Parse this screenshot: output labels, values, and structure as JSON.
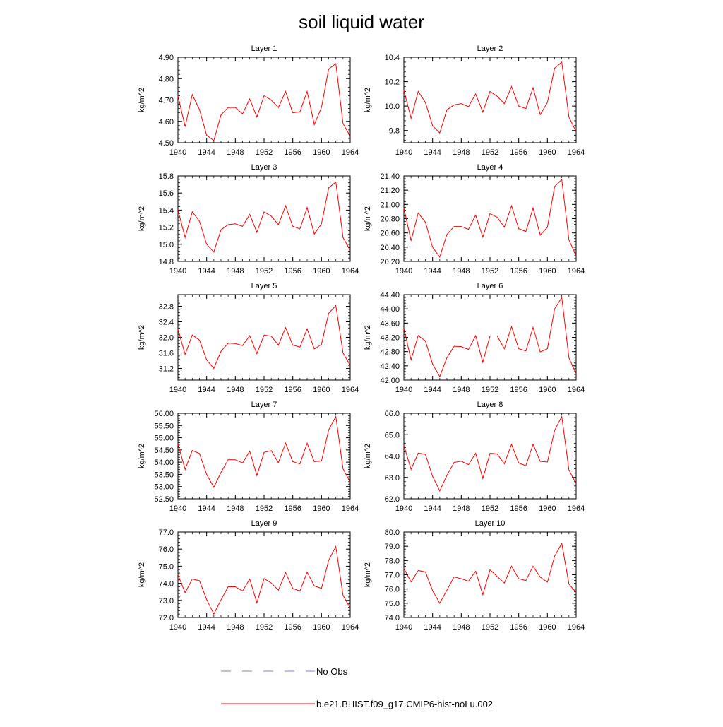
{
  "page_title": "soil liquid water",
  "legend": {
    "obs_label": "No Obs",
    "model_label": "b.e21.BHIST.f09_g17.CMIP6-hist-noLu.002",
    "obs_color": "#7f7fe0",
    "model_color": "#ff0000"
  },
  "chart_data": [
    {
      "type": "line",
      "title": "Layer 1",
      "ylabel": "kg/m^2",
      "xlabel": "",
      "xlim": [
        1940,
        1964
      ],
      "ylim": [
        4.5,
        4.9
      ],
      "xticks": [
        1940,
        1944,
        1948,
        1952,
        1956,
        1960,
        1964
      ],
      "xtick_labels": [
        "1940",
        "1944",
        "1948",
        "1952",
        "1956",
        "1960",
        "1964"
      ],
      "yticks": [
        4.5,
        4.6,
        4.7,
        4.8,
        4.9
      ],
      "ytick_labels": [
        "4.50",
        "4.60",
        "4.70",
        "4.80",
        "4.90"
      ],
      "grid": false,
      "x": [
        1940,
        1941,
        1942,
        1943,
        1944,
        1945,
        1946,
        1947,
        1948,
        1949,
        1950,
        1951,
        1952,
        1953,
        1954,
        1955,
        1956,
        1957,
        1958,
        1959,
        1960,
        1961,
        1962,
        1963,
        1964
      ],
      "series": [
        {
          "name": "b.e21.BHIST.f09_g17.CMIP6-hist-noLu.002",
          "color": "#ff0000",
          "values": [
            4.72,
            4.575,
            4.725,
            4.655,
            4.535,
            4.51,
            4.63,
            4.665,
            4.665,
            4.635,
            4.705,
            4.62,
            4.72,
            4.7,
            4.665,
            4.74,
            4.64,
            4.645,
            4.74,
            4.585,
            4.665,
            4.845,
            4.87,
            4.59,
            4.53
          ]
        }
      ]
    },
    {
      "type": "line",
      "title": "Layer 2",
      "ylabel": "kg/m^2",
      "xlabel": "",
      "xlim": [
        1940,
        1964
      ],
      "ylim": [
        9.7,
        10.4
      ],
      "xticks": [
        1940,
        1944,
        1948,
        1952,
        1956,
        1960,
        1964
      ],
      "xtick_labels": [
        "1940",
        "1944",
        "1948",
        "1952",
        "1956",
        "1960",
        "1964"
      ],
      "yticks": [
        9.8,
        10.0,
        10.2,
        10.4
      ],
      "ytick_labels": [
        "9.8",
        "10.0",
        "10.2",
        "10.4"
      ],
      "grid": false,
      "x": [
        1940,
        1941,
        1942,
        1943,
        1944,
        1945,
        1946,
        1947,
        1948,
        1949,
        1950,
        1951,
        1952,
        1953,
        1954,
        1955,
        1956,
        1957,
        1958,
        1959,
        1960,
        1961,
        1962,
        1963,
        1964
      ],
      "series": [
        {
          "name": "b.e21.BHIST.f09_g17.CMIP6-hist-noLu.002",
          "color": "#ff0000",
          "values": [
            10.13,
            9.9,
            10.12,
            10.03,
            9.84,
            9.78,
            9.97,
            10.01,
            10.02,
            9.995,
            10.1,
            9.95,
            10.12,
            10.08,
            10.02,
            10.16,
            10.0,
            9.98,
            10.15,
            9.93,
            10.03,
            10.31,
            10.36,
            9.91,
            9.79
          ]
        }
      ]
    },
    {
      "type": "line",
      "title": "Layer 3",
      "ylabel": "kg/m^2",
      "xlabel": "",
      "xlim": [
        1940,
        1964
      ],
      "ylim": [
        14.8,
        15.8
      ],
      "xticks": [
        1940,
        1944,
        1948,
        1952,
        1956,
        1960,
        1964
      ],
      "xtick_labels": [
        "1940",
        "1944",
        "1948",
        "1952",
        "1956",
        "1960",
        "1964"
      ],
      "yticks": [
        14.8,
        15.0,
        15.2,
        15.4,
        15.6,
        15.8
      ],
      "ytick_labels": [
        "14.8",
        "15.0",
        "15.2",
        "15.4",
        "15.6",
        "15.8"
      ],
      "grid": false,
      "x": [
        1940,
        1941,
        1942,
        1943,
        1944,
        1945,
        1946,
        1947,
        1948,
        1949,
        1950,
        1951,
        1952,
        1953,
        1954,
        1955,
        1956,
        1957,
        1958,
        1959,
        1960,
        1961,
        1962,
        1963,
        1964
      ],
      "series": [
        {
          "name": "b.e21.BHIST.f09_g17.CMIP6-hist-noLu.002",
          "color": "#ff0000",
          "values": [
            15.4,
            15.08,
            15.38,
            15.27,
            15.0,
            14.91,
            15.17,
            15.23,
            15.24,
            15.21,
            15.35,
            15.14,
            15.38,
            15.33,
            15.23,
            15.45,
            15.21,
            15.18,
            15.43,
            15.12,
            15.24,
            15.66,
            15.73,
            15.08,
            14.93
          ]
        }
      ]
    },
    {
      "type": "line",
      "title": "Layer 4",
      "ylabel": "kg/m^2",
      "xlabel": "",
      "xlim": [
        1940,
        1964
      ],
      "ylim": [
        20.2,
        21.4
      ],
      "xticks": [
        1940,
        1944,
        1948,
        1952,
        1956,
        1960,
        1964
      ],
      "xtick_labels": [
        "1940",
        "1944",
        "1948",
        "1952",
        "1956",
        "1960",
        "1964"
      ],
      "yticks": [
        20.2,
        20.4,
        20.6,
        20.8,
        21.0,
        21.2,
        21.4
      ],
      "ytick_labels": [
        "20.20",
        "20.40",
        "20.60",
        "20.80",
        "21.00",
        "21.20",
        "21.40"
      ],
      "grid": false,
      "x": [
        1940,
        1941,
        1942,
        1943,
        1944,
        1945,
        1946,
        1947,
        1948,
        1949,
        1950,
        1951,
        1952,
        1953,
        1954,
        1955,
        1956,
        1957,
        1958,
        1959,
        1960,
        1961,
        1962,
        1963,
        1964
      ],
      "series": [
        {
          "name": "b.e21.BHIST.f09_g17.CMIP6-hist-noLu.002",
          "color": "#ff0000",
          "values": [
            20.95,
            20.49,
            20.88,
            20.75,
            20.4,
            20.26,
            20.58,
            20.69,
            20.69,
            20.65,
            20.85,
            20.54,
            20.87,
            20.82,
            20.68,
            20.98,
            20.66,
            20.62,
            20.95,
            20.57,
            20.68,
            21.25,
            21.35,
            20.5,
            20.28
          ]
        }
      ]
    },
    {
      "type": "line",
      "title": "Layer 5",
      "ylabel": "kg/m^2",
      "xlabel": "",
      "xlim": [
        1940,
        1964
      ],
      "ylim": [
        30.9,
        33.1
      ],
      "xticks": [
        1940,
        1944,
        1948,
        1952,
        1956,
        1960,
        1964
      ],
      "xtick_labels": [
        "1940",
        "1944",
        "1948",
        "1952",
        "1956",
        "1960",
        "1964"
      ],
      "yticks": [
        31.2,
        31.6,
        32.0,
        32.4,
        32.8
      ],
      "ytick_labels": [
        "31.2",
        "31.6",
        "32.0",
        "32.4",
        "32.8"
      ],
      "grid": false,
      "x": [
        1940,
        1941,
        1942,
        1943,
        1944,
        1945,
        1946,
        1947,
        1948,
        1949,
        1950,
        1951,
        1952,
        1953,
        1954,
        1955,
        1956,
        1957,
        1958,
        1959,
        1960,
        1961,
        1962,
        1963,
        1964
      ],
      "series": [
        {
          "name": "b.e21.BHIST.f09_g17.CMIP6-hist-noLu.002",
          "color": "#ff0000",
          "values": [
            32.2,
            31.56,
            32.06,
            31.93,
            31.42,
            31.2,
            31.64,
            31.85,
            31.84,
            31.79,
            32.04,
            31.58,
            32.06,
            32.03,
            31.8,
            32.25,
            31.8,
            31.75,
            32.22,
            31.7,
            31.82,
            32.62,
            32.82,
            31.6,
            31.28
          ]
        }
      ]
    },
    {
      "type": "line",
      "title": "Layer 6",
      "ylabel": "kg/m^2",
      "xlabel": "",
      "xlim": [
        1940,
        1964
      ],
      "ylim": [
        42.0,
        44.4
      ],
      "xticks": [
        1940,
        1944,
        1948,
        1952,
        1956,
        1960,
        1964
      ],
      "xtick_labels": [
        "1940",
        "1944",
        "1948",
        "1952",
        "1956",
        "1960",
        "1964"
      ],
      "yticks": [
        42.0,
        42.4,
        42.8,
        43.2,
        43.6,
        44.0,
        44.4
      ],
      "ytick_labels": [
        "42.00",
        "42.40",
        "42.80",
        "43.20",
        "43.60",
        "44.00",
        "44.40"
      ],
      "grid": false,
      "x": [
        1940,
        1941,
        1942,
        1943,
        1944,
        1945,
        1946,
        1947,
        1948,
        1949,
        1950,
        1951,
        1952,
        1953,
        1954,
        1955,
        1956,
        1957,
        1958,
        1959,
        1960,
        1961,
        1962,
        1963,
        1964
      ],
      "series": [
        {
          "name": "b.e21.BHIST.f09_g17.CMIP6-hist-noLu.002",
          "color": "#ff0000",
          "values": [
            43.45,
            42.57,
            43.25,
            43.1,
            42.45,
            42.1,
            42.63,
            42.95,
            42.94,
            42.86,
            43.25,
            42.5,
            43.24,
            43.24,
            42.88,
            43.5,
            42.88,
            42.82,
            43.48,
            42.79,
            42.88,
            44.0,
            44.32,
            42.62,
            42.18
          ]
        }
      ]
    },
    {
      "type": "line",
      "title": "Layer 7",
      "ylabel": "kg/m^2",
      "xlabel": "",
      "xlim": [
        1940,
        1964
      ],
      "ylim": [
        52.5,
        56.0
      ],
      "xticks": [
        1940,
        1944,
        1948,
        1952,
        1956,
        1960,
        1964
      ],
      "xtick_labels": [
        "1940",
        "1944",
        "1948",
        "1952",
        "1956",
        "1960",
        "1964"
      ],
      "yticks": [
        52.5,
        53.0,
        53.5,
        54.0,
        54.5,
        55.0,
        55.5,
        56.0
      ],
      "ytick_labels": [
        "52.50",
        "53.00",
        "53.50",
        "54.00",
        "54.50",
        "55.00",
        "55.50",
        "56.00"
      ],
      "grid": false,
      "x": [
        1940,
        1941,
        1942,
        1943,
        1944,
        1945,
        1946,
        1947,
        1948,
        1949,
        1950,
        1951,
        1952,
        1953,
        1954,
        1955,
        1956,
        1957,
        1958,
        1959,
        1960,
        1961,
        1962,
        1963,
        1964
      ],
      "series": [
        {
          "name": "b.e21.BHIST.f09_g17.CMIP6-hist-noLu.002",
          "color": "#ff0000",
          "values": [
            54.75,
            53.7,
            54.48,
            54.35,
            53.5,
            52.97,
            53.58,
            54.1,
            54.1,
            53.97,
            54.45,
            53.45,
            54.4,
            54.47,
            53.98,
            54.78,
            54.02,
            53.93,
            54.78,
            54.02,
            54.05,
            55.32,
            55.87,
            53.73,
            53.18
          ]
        }
      ]
    },
    {
      "type": "line",
      "title": "Layer 8",
      "ylabel": "kg/m^2",
      "xlabel": "",
      "xlim": [
        1940,
        1964
      ],
      "ylim": [
        62.0,
        66.0
      ],
      "xticks": [
        1940,
        1944,
        1948,
        1952,
        1956,
        1960,
        1964
      ],
      "xtick_labels": [
        "1940",
        "1944",
        "1948",
        "1952",
        "1956",
        "1960",
        "1964"
      ],
      "yticks": [
        62.0,
        63.0,
        64.0,
        65.0,
        66.0
      ],
      "ytick_labels": [
        "62.0",
        "63.0",
        "64.0",
        "65.0",
        "66.0"
      ],
      "grid": false,
      "x": [
        1940,
        1941,
        1942,
        1943,
        1944,
        1945,
        1946,
        1947,
        1948,
        1949,
        1950,
        1951,
        1952,
        1953,
        1954,
        1955,
        1956,
        1957,
        1958,
        1959,
        1960,
        1961,
        1962,
        1963,
        1964
      ],
      "series": [
        {
          "name": "b.e21.BHIST.f09_g17.CMIP6-hist-noLu.002",
          "color": "#ff0000",
          "values": [
            64.5,
            63.38,
            64.14,
            64.08,
            63.05,
            62.37,
            63.1,
            63.7,
            63.76,
            63.6,
            64.13,
            62.95,
            64.13,
            64.1,
            63.64,
            64.55,
            63.67,
            63.55,
            64.55,
            63.75,
            63.72,
            65.2,
            65.85,
            63.35,
            62.7
          ]
        }
      ]
    },
    {
      "type": "line",
      "title": "Layer 9",
      "ylabel": "kg/m^2",
      "xlabel": "",
      "xlim": [
        1940,
        1964
      ],
      "ylim": [
        72.0,
        77.0
      ],
      "xticks": [
        1940,
        1944,
        1948,
        1952,
        1956,
        1960,
        1964
      ],
      "xtick_labels": [
        "1940",
        "1944",
        "1948",
        "1952",
        "1956",
        "1960",
        "1964"
      ],
      "yticks": [
        72.0,
        73.0,
        74.0,
        75.0,
        76.0,
        77.0
      ],
      "ytick_labels": [
        "72.0",
        "73.0",
        "74.0",
        "75.0",
        "76.0",
        "77.0"
      ],
      "grid": false,
      "x": [
        1940,
        1941,
        1942,
        1943,
        1944,
        1945,
        1946,
        1947,
        1948,
        1949,
        1950,
        1951,
        1952,
        1953,
        1954,
        1955,
        1956,
        1957,
        1958,
        1959,
        1960,
        1961,
        1962,
        1963,
        1964
      ],
      "series": [
        {
          "name": "b.e21.BHIST.f09_g17.CMIP6-hist-noLu.002",
          "color": "#ff0000",
          "values": [
            74.5,
            73.45,
            74.25,
            74.15,
            73.05,
            72.2,
            73.03,
            73.8,
            73.8,
            73.55,
            74.25,
            72.85,
            74.28,
            74.02,
            73.6,
            74.63,
            73.7,
            73.55,
            74.65,
            73.85,
            73.7,
            75.35,
            76.15,
            73.3,
            72.55
          ]
        }
      ]
    },
    {
      "type": "line",
      "title": "Layer 10",
      "ylabel": "kg/m^2",
      "xlabel": "",
      "xlim": [
        1940,
        1964
      ],
      "ylim": [
        74.0,
        80.0
      ],
      "xticks": [
        1940,
        1944,
        1948,
        1952,
        1956,
        1960,
        1964
      ],
      "xtick_labels": [
        "1940",
        "1944",
        "1948",
        "1952",
        "1956",
        "1960",
        "1964"
      ],
      "yticks": [
        74.0,
        75.0,
        76.0,
        77.0,
        78.0,
        79.0,
        80.0
      ],
      "ytick_labels": [
        "74.0",
        "75.0",
        "76.0",
        "77.0",
        "78.0",
        "79.0",
        "80.0"
      ],
      "grid": false,
      "x": [
        1940,
        1941,
        1942,
        1943,
        1944,
        1945,
        1946,
        1947,
        1948,
        1949,
        1950,
        1951,
        1952,
        1953,
        1954,
        1955,
        1956,
        1957,
        1958,
        1959,
        1960,
        1961,
        1962,
        1963,
        1964
      ],
      "series": [
        {
          "name": "b.e21.BHIST.f09_g17.CMIP6-hist-noLu.002",
          "color": "#ff0000",
          "values": [
            77.45,
            76.5,
            77.3,
            77.2,
            75.88,
            75.0,
            75.92,
            76.85,
            76.72,
            76.55,
            77.25,
            75.6,
            77.35,
            76.88,
            76.42,
            77.6,
            76.72,
            76.6,
            77.6,
            76.83,
            76.48,
            78.3,
            79.2,
            76.35,
            75.75
          ]
        }
      ]
    }
  ]
}
